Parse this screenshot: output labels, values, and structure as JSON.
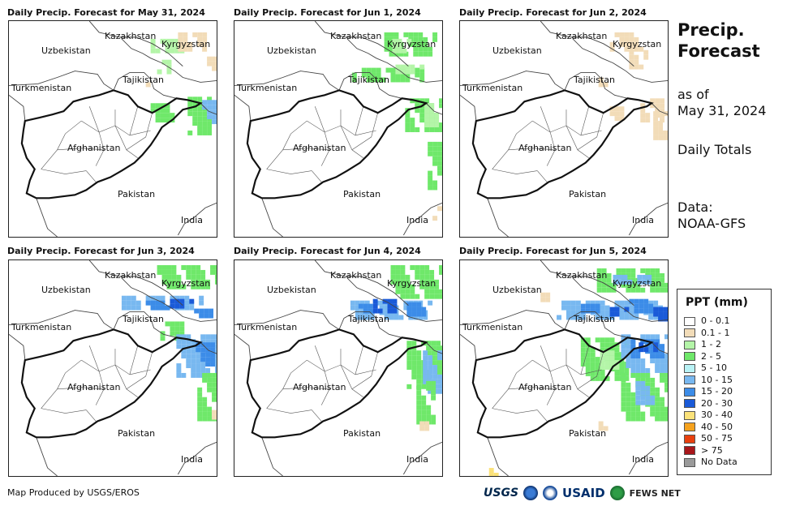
{
  "panels": [
    {
      "title": "Daily Precip. Forecast for May 31, 2024"
    },
    {
      "title": "Daily Precip. Forecast for Jun 1, 2024"
    },
    {
      "title": "Daily Precip. Forecast for Jun 2, 2024"
    },
    {
      "title": "Daily Precip. Forecast for Jun 3, 2024"
    },
    {
      "title": "Daily Precip. Forecast for Jun 4, 2024"
    },
    {
      "title": "Daily Precip. Forecast for Jun 5, 2024"
    }
  ],
  "map_labels": {
    "kazakhstan": "Kazakhstan",
    "kyrgyzstan": "Kyrgyzstan",
    "uzbekistan": "Uzbekistan",
    "tajikistan": "Tajikistan",
    "turkmenistan": "Turkmenistan",
    "afghanistan": "Afghanistan",
    "pakistan": "Pakistan",
    "india": "India"
  },
  "side": {
    "title_line1": "Precip.",
    "title_line2": "Forecast",
    "asof_line1": "as of",
    "asof_line2": "May 31, 2024",
    "totals": "Daily Totals",
    "data_line1": "Data:",
    "data_line2": "NOAA-GFS"
  },
  "legend": {
    "title": "PPT (mm)",
    "items": [
      {
        "label": "0 - 0.1",
        "color": "#ffffff"
      },
      {
        "label": "0.1 - 1",
        "color": "#f2dcb8"
      },
      {
        "label": "1 - 2",
        "color": "#b4f5a8"
      },
      {
        "label": "2 - 5",
        "color": "#6fe86a"
      },
      {
        "label": "5 - 10",
        "color": "#b8f2f5"
      },
      {
        "label": "10 - 15",
        "color": "#78b8f0"
      },
      {
        "label": "15 - 20",
        "color": "#3c8ce8"
      },
      {
        "label": "20 - 30",
        "color": "#1a5ad8"
      },
      {
        "label": "30 - 40",
        "color": "#fbe27a"
      },
      {
        "label": "40 - 50",
        "color": "#f5a21e"
      },
      {
        "label": "50 - 75",
        "color": "#e8400e"
      },
      {
        "label": "> 75",
        "color": "#a8161a"
      },
      {
        "label": "No Data",
        "color": "#9a9a9a"
      }
    ]
  },
  "footer": {
    "credit": "Map Produced by USGS/EROS"
  },
  "logos": {
    "usgs": "USGS",
    "usaid": "USAID",
    "fews": "FEWS NET"
  }
}
